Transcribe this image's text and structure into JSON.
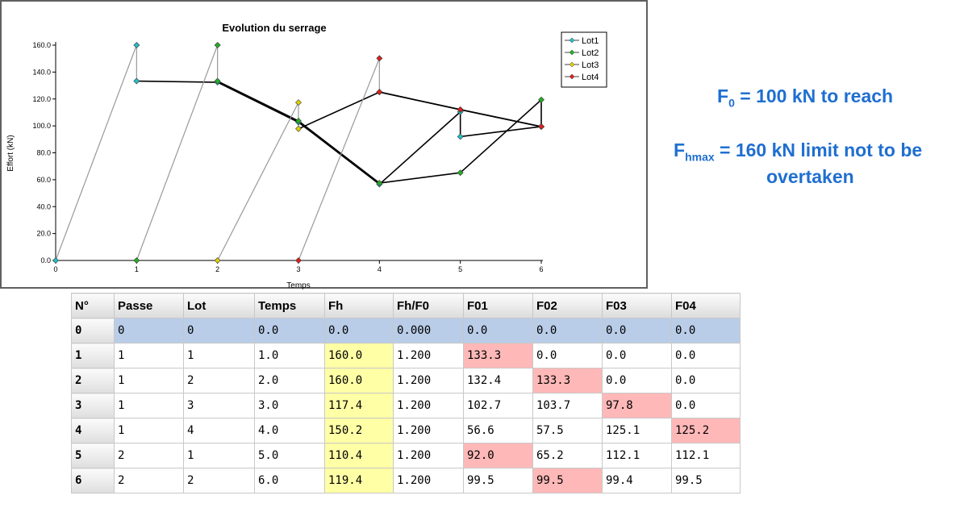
{
  "chart_data": {
    "type": "line",
    "title": "Evolution du serrage",
    "xlabel": "Temps",
    "ylabel": "Effort (kN)",
    "xlim": [
      0,
      6
    ],
    "ylim": [
      0,
      160
    ],
    "x_ticks": [
      "0",
      "1",
      "2",
      "3",
      "4",
      "5",
      "6"
    ],
    "y_ticks": [
      "0.0",
      "20.0",
      "40.0",
      "60.0",
      "80.0",
      "100.0",
      "120.0",
      "140.0",
      "160.0"
    ],
    "legend_position": "top-right",
    "series": [
      {
        "name": "Lot1",
        "color": "#22c0c8",
        "points": [
          [
            0,
            0
          ],
          [
            1,
            160
          ],
          [
            1,
            133.3
          ],
          [
            2,
            132.4
          ],
          [
            3,
            102.7
          ],
          [
            4,
            56.6
          ],
          [
            5,
            110.4
          ],
          [
            5,
            92.0
          ],
          [
            6,
            99.5
          ]
        ]
      },
      {
        "name": "Lot2",
        "color": "#22b022",
        "points": [
          [
            1,
            0
          ],
          [
            2,
            160
          ],
          [
            2,
            133.3
          ],
          [
            3,
            103.7
          ],
          [
            4,
            57.5
          ],
          [
            5,
            65.2
          ],
          [
            6,
            119.4
          ],
          [
            6,
            99.5
          ]
        ]
      },
      {
        "name": "Lot3",
        "color": "#e0d000",
        "points": [
          [
            2,
            0
          ],
          [
            3,
            117.4
          ],
          [
            3,
            97.8
          ],
          [
            4,
            125.1
          ],
          [
            5,
            112.1
          ],
          [
            6,
            99.4
          ]
        ]
      },
      {
        "name": "Lot4",
        "color": "#e02020",
        "points": [
          [
            3,
            0
          ],
          [
            4,
            150.2
          ],
          [
            4,
            125.2
          ],
          [
            5,
            112.1
          ],
          [
            6,
            99.5
          ]
        ]
      }
    ]
  },
  "notes": {
    "f0_main": "F",
    "f0_sub": "0",
    "f0_text": " = 100 kN to reach",
    "fh_main": "F",
    "fh_sub": "hmax",
    "fh_text": " = 160 kN limit not to be",
    "fh_text2": "overtaken"
  },
  "table": {
    "headers": [
      "N°",
      "Passe",
      "Lot",
      "Temps",
      "Fh",
      "Fh/F0",
      "F01",
      "F02",
      "F03",
      "F04"
    ],
    "rows": [
      {
        "n": "0",
        "passe": "0",
        "lot": "0",
        "temps": "0.0",
        "fh": "0.0",
        "ratio": "0.000",
        "f01": "0.0",
        "f02": "0.0",
        "f03": "0.0",
        "f04": "0.0"
      },
      {
        "n": "1",
        "passe": "1",
        "lot": "1",
        "temps": "1.0",
        "fh": "160.0",
        "ratio": "1.200",
        "f01": "133.3",
        "f02": "0.0",
        "f03": "0.0",
        "f04": "0.0"
      },
      {
        "n": "2",
        "passe": "1",
        "lot": "2",
        "temps": "2.0",
        "fh": "160.0",
        "ratio": "1.200",
        "f01": "132.4",
        "f02": "133.3",
        "f03": "0.0",
        "f04": "0.0"
      },
      {
        "n": "3",
        "passe": "1",
        "lot": "3",
        "temps": "3.0",
        "fh": "117.4",
        "ratio": "1.200",
        "f01": "102.7",
        "f02": "103.7",
        "f03": "97.8",
        "f04": "0.0"
      },
      {
        "n": "4",
        "passe": "1",
        "lot": "4",
        "temps": "4.0",
        "fh": "150.2",
        "ratio": "1.200",
        "f01": "56.6",
        "f02": "57.5",
        "f03": "125.1",
        "f04": "125.2"
      },
      {
        "n": "5",
        "passe": "2",
        "lot": "1",
        "temps": "5.0",
        "fh": "110.4",
        "ratio": "1.200",
        "f01": "92.0",
        "f02": "65.2",
        "f03": "112.1",
        "f04": "112.1"
      },
      {
        "n": "6",
        "passe": "2",
        "lot": "2",
        "temps": "6.0",
        "fh": "119.4",
        "ratio": "1.200",
        "f01": "99.5",
        "f02": "99.5",
        "f03": "99.4",
        "f04": "99.5"
      }
    ]
  }
}
